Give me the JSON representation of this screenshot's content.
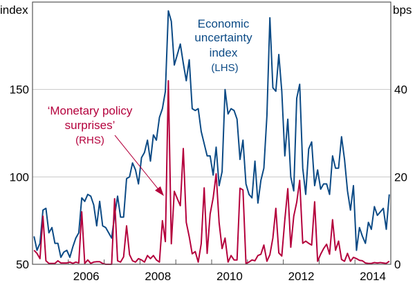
{
  "chart_data": {
    "type": "line",
    "left_axis": {
      "label": "index",
      "ylim": [
        50,
        200
      ],
      "ticks": [
        50,
        100,
        150
      ]
    },
    "right_axis": {
      "label": "bps",
      "ylim": [
        0,
        60
      ],
      "ticks": [
        0,
        20,
        40
      ]
    },
    "x_tick_labels": [
      "2006",
      "2008",
      "2010",
      "2012",
      "2014"
    ],
    "xlim": [
      "2005-01",
      "2014-12"
    ],
    "grid": "horizontal",
    "x": [
      "2005-01",
      "2005-02",
      "2005-03",
      "2005-04",
      "2005-05",
      "2005-06",
      "2005-07",
      "2005-08",
      "2005-09",
      "2005-10",
      "2005-11",
      "2005-12",
      "2006-01",
      "2006-02",
      "2006-03",
      "2006-04",
      "2006-05",
      "2006-06",
      "2006-07",
      "2006-08",
      "2006-09",
      "2006-10",
      "2006-11",
      "2006-12",
      "2007-01",
      "2007-02",
      "2007-03",
      "2007-04",
      "2007-05",
      "2007-06",
      "2007-07",
      "2007-08",
      "2007-09",
      "2007-10",
      "2007-11",
      "2007-12",
      "2008-01",
      "2008-02",
      "2008-03",
      "2008-04",
      "2008-05",
      "2008-06",
      "2008-07",
      "2008-08",
      "2008-09",
      "2008-10",
      "2008-11",
      "2008-12",
      "2009-01",
      "2009-02",
      "2009-03",
      "2009-04",
      "2009-05",
      "2009-06",
      "2009-07",
      "2009-08",
      "2009-09",
      "2009-10",
      "2009-11",
      "2009-12",
      "2010-01",
      "2010-02",
      "2010-03",
      "2010-04",
      "2010-05",
      "2010-06",
      "2010-07",
      "2010-08",
      "2010-09",
      "2010-10",
      "2010-11",
      "2010-12",
      "2011-01",
      "2011-02",
      "2011-03",
      "2011-04",
      "2011-05",
      "2011-06",
      "2011-07",
      "2011-08",
      "2011-09",
      "2011-10",
      "2011-11",
      "2011-12",
      "2012-01",
      "2012-02",
      "2012-03",
      "2012-04",
      "2012-05",
      "2012-06",
      "2012-07",
      "2012-08",
      "2012-09",
      "2012-10",
      "2012-11",
      "2012-12",
      "2013-01",
      "2013-02",
      "2013-03",
      "2013-04",
      "2013-05",
      "2013-06",
      "2013-07",
      "2013-08",
      "2013-09",
      "2013-10",
      "2013-11",
      "2013-12",
      "2014-01",
      "2014-02",
      "2014-03",
      "2014-04",
      "2014-05",
      "2014-06",
      "2014-07",
      "2014-08",
      "2014-09",
      "2014-10",
      "2014-11",
      "2014-12"
    ],
    "series": [
      {
        "name": "Economic uncertainty index (LHS)",
        "axis": "left",
        "color": "#0b4a85",
        "values": [
          66,
          58,
          62,
          81,
          82,
          68,
          71,
          62,
          62,
          54,
          57,
          58,
          54,
          60,
          65,
          68,
          88,
          86,
          90,
          89,
          84,
          72,
          86,
          72,
          71,
          68,
          65,
          78,
          89,
          77,
          77,
          99,
          100,
          108,
          104,
          96,
          111,
          114,
          121,
          109,
          124,
          121,
          134,
          139,
          149,
          195,
          189,
          164,
          170,
          176,
          165,
          155,
          167,
          139,
          138,
          139,
          126,
          119,
          112,
          112,
          101,
          117,
          95,
          103,
          150,
          136,
          139,
          138,
          133,
          110,
          121,
          96,
          90,
          88,
          109,
          85,
          98,
          105,
          135,
          191,
          151,
          149,
          170,
          149,
          112,
          133,
          100,
          92,
          145,
          153,
          105,
          90,
          116,
          120,
          95,
          104,
          93,
          96,
          96,
          90,
          112,
          105,
          105,
          123,
          110,
          92,
          81,
          95,
          58,
          71,
          66,
          62,
          74,
          70,
          83,
          78,
          80,
          82,
          70,
          90
        ]
      },
      {
        "name": "'Monetary policy surprises' (RHS)",
        "axis": "right",
        "color": "#b4003c",
        "values": [
          3.2,
          2.5,
          1.3,
          11,
          0.8,
          0.2,
          0.2,
          0.2,
          0.8,
          0.3,
          0.3,
          0.3,
          0.5,
          0.2,
          0.5,
          0.3,
          12,
          0.2,
          1,
          0.2,
          0.5,
          0.6,
          0.6,
          0.2,
          0,
          0,
          0,
          15,
          0.8,
          0.5,
          1.7,
          8.8,
          2.2,
          0.8,
          0.5,
          1.3,
          1,
          0.5,
          2,
          1.3,
          2,
          1,
          0.5,
          10,
          5.2,
          42,
          4.7,
          16.7,
          15,
          13.4,
          26.5,
          9.6,
          6.3,
          2.4,
          2.9,
          0.5,
          4.7,
          17.5,
          2.5,
          11.5,
          15.2,
          20.7,
          9.5,
          3.6,
          6,
          0.5,
          2,
          1,
          1,
          17.4,
          17,
          0.2,
          0.5,
          1,
          0.8,
          2,
          2.3,
          4.4,
          0.7,
          2.2,
          6.0,
          12.8,
          2.6,
          1.9,
          10.2,
          17.3,
          3.9,
          11.0,
          14.2,
          19.2,
          4.8,
          5.3,
          4.8,
          4.4,
          14.3,
          0.7,
          2.3,
          3.6,
          4.6,
          2.3,
          10.2,
          3.2,
          5.3,
          1.1,
          0.7,
          2.5,
          0.7,
          1.6,
          1.3,
          0.9,
          0.8,
          0.3,
          0.2,
          0.2,
          0.4,
          0.3,
          0.4,
          0.3,
          0.2,
          0.7
        ]
      }
    ],
    "annotations": {
      "uncertainty": [
        "Economic",
        "uncertainty",
        "index",
        "(LHS)"
      ],
      "surprises": [
        "‘Monetary policy",
        "surprises’",
        "(RHS)"
      ]
    }
  }
}
